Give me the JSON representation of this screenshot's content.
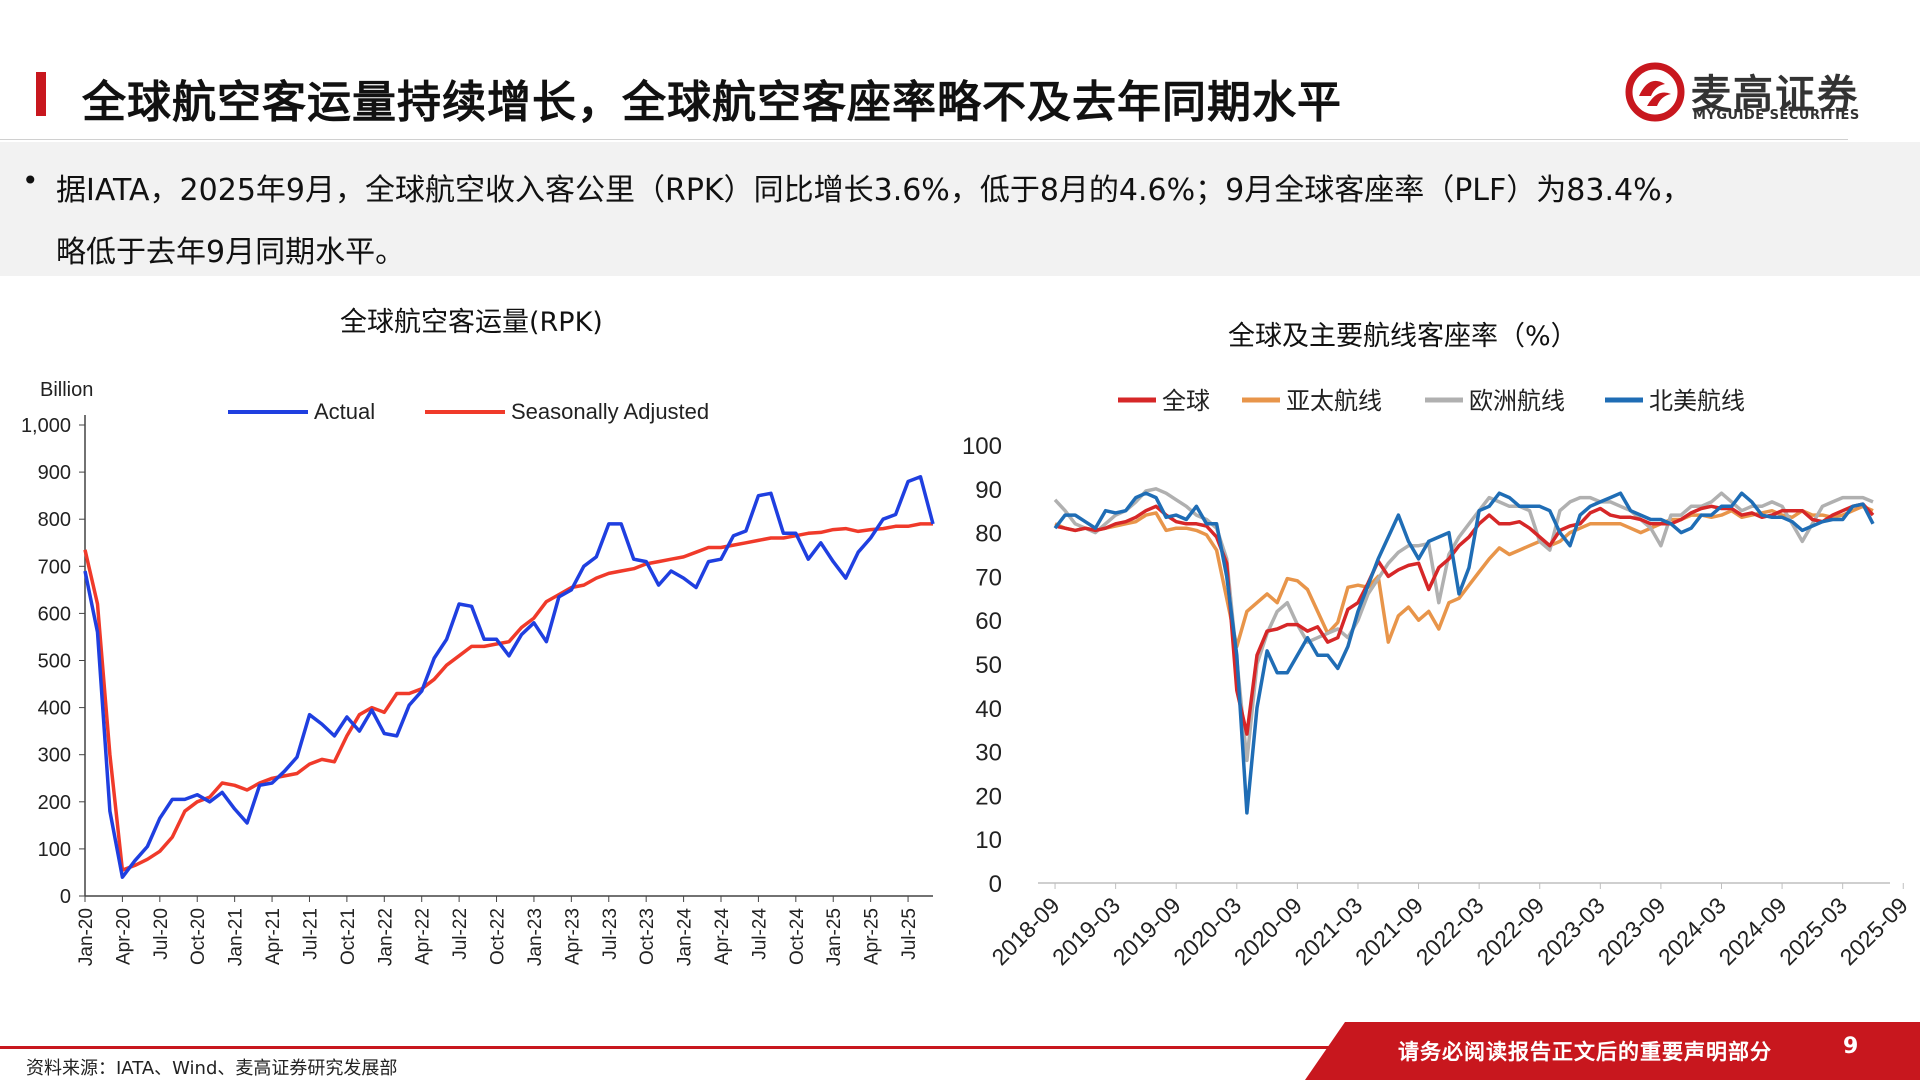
{
  "header": {
    "title": "全球航空客运量持续增长，全球航空客座率略不及去年同期水平",
    "logo_cn": "麦高证券",
    "logo_en": "MYGUIDE SECURITIES"
  },
  "summary": {
    "bullet": "•",
    "line1": "据IATA，2025年9月，全球航空收入客公里（RPK）同比增长3.6%，低于8月的4.6%；9月全球客座率（PLF）为83.4%，",
    "line2": "略低于去年9月同期水平。"
  },
  "footer": {
    "source": "资料来源：IATA、Wind、麦高证券研究发展部",
    "disclaimer": "请务必阅读报告正文后的重要声明部分",
    "page": "9"
  },
  "colors": {
    "accent": "#c8171e"
  },
  "chart_data": [
    {
      "type": "line",
      "title": "全球航空客运量(RPK)",
      "ylabel": "Billion",
      "ylim": [
        0,
        1000
      ],
      "yticks": [
        0,
        100,
        200,
        300,
        400,
        500,
        600,
        700,
        800,
        900,
        1000
      ],
      "ytick_labels": [
        "0",
        "100",
        "200",
        "300",
        "400",
        "500",
        "600",
        "700",
        "800",
        "900",
        "1,000"
      ],
      "xtick_labels": [
        "Jan-20",
        "Apr-20",
        "Jul-20",
        "Oct-20",
        "Jan-21",
        "Apr-21",
        "Jul-21",
        "Oct-21",
        "Jan-22",
        "Apr-22",
        "Jul-22",
        "Oct-22",
        "Jan-23",
        "Apr-23",
        "Jul-23",
        "Oct-23",
        "Jan-24",
        "Apr-24",
        "Jul-24",
        "Oct-24",
        "Jan-25",
        "Apr-25",
        "Jul-25"
      ],
      "legend_position": "top",
      "series": [
        {
          "name": "Actual",
          "color": "#1f3fe0",
          "values": [
            690,
            560,
            180,
            40,
            75,
            105,
            165,
            205,
            205,
            215,
            200,
            220,
            185,
            155,
            235,
            240,
            265,
            295,
            385,
            365,
            340,
            380,
            350,
            395,
            345,
            340,
            405,
            435,
            505,
            545,
            620,
            615,
            545,
            545,
            510,
            555,
            580,
            540,
            635,
            650,
            700,
            720,
            790,
            790,
            715,
            710,
            660,
            690,
            675,
            655,
            710,
            715,
            765,
            775,
            850,
            855,
            770,
            770,
            715,
            750,
            710,
            675,
            730,
            760,
            800,
            810,
            880,
            890,
            790
          ]
        },
        {
          "name": "Seasonally Adjusted",
          "color": "#f03a2a",
          "values": [
            735,
            620,
            300,
            55,
            65,
            78,
            95,
            125,
            180,
            200,
            210,
            240,
            235,
            225,
            240,
            250,
            255,
            260,
            280,
            290,
            285,
            340,
            385,
            400,
            390,
            430,
            430,
            440,
            460,
            490,
            510,
            530,
            530,
            535,
            540,
            570,
            590,
            625,
            640,
            655,
            660,
            675,
            685,
            690,
            695,
            705,
            710,
            715,
            720,
            730,
            740,
            740,
            745,
            750,
            755,
            760,
            760,
            765,
            770,
            772,
            778,
            780,
            774,
            778,
            780,
            785,
            785,
            790,
            790
          ]
        }
      ]
    },
    {
      "type": "line",
      "title": "全球及主要航线客座率（%）",
      "ylim": [
        0,
        100
      ],
      "yticks": [
        0,
        10,
        20,
        30,
        40,
        50,
        60,
        70,
        80,
        90,
        100
      ],
      "xtick_labels": [
        "2018-09",
        "2019-03",
        "2019-09",
        "2020-03",
        "2020-09",
        "2021-03",
        "2021-09",
        "2022-03",
        "2022-09",
        "2023-03",
        "2023-09",
        "2024-03",
        "2024-09",
        "2025-03",
        "2025-09"
      ],
      "legend_position": "top",
      "series": [
        {
          "name": "全球",
          "color": "#d62728",
          "values": [
            81.5,
            81,
            80.5,
            81,
            80.5,
            81,
            82,
            82.5,
            83.5,
            85,
            86,
            84,
            82.5,
            82,
            82,
            81.5,
            79,
            73,
            44,
            34,
            52,
            57.5,
            58,
            59,
            59,
            57.5,
            58.5,
            55,
            56,
            62.5,
            64,
            68.5,
            73.5,
            70,
            71.5,
            72.5,
            73,
            67,
            72,
            74,
            77,
            79,
            82,
            84,
            82,
            82,
            82.5,
            81,
            79,
            77,
            80.5,
            81.5,
            82,
            84.5,
            85.5,
            84,
            83.5,
            83.5,
            83,
            82,
            82,
            82,
            83,
            84.5,
            85.5,
            86,
            85.5,
            85.5,
            84,
            84.5,
            83.5,
            84,
            85,
            85,
            85,
            83,
            82.5,
            84,
            85,
            86,
            86.5,
            84
          ]
        },
        {
          "name": "亚太航线",
          "color": "#e8954a",
          "values": [
            82,
            81,
            80.5,
            81,
            80.5,
            81,
            81.5,
            82,
            82.5,
            84,
            84.5,
            80.5,
            81,
            81,
            80.5,
            79.5,
            76,
            65,
            54,
            62,
            64,
            66,
            64,
            69.5,
            69,
            67,
            62,
            57,
            59.5,
            67.5,
            68,
            67.5,
            70,
            55,
            61,
            63,
            60,
            62,
            58,
            64,
            65,
            68,
            71,
            74,
            76.5,
            75,
            76,
            77,
            78,
            77,
            78,
            80,
            81,
            82,
            82,
            82,
            82,
            81,
            80,
            81,
            82,
            83,
            83,
            84,
            84,
            83.5,
            84,
            85,
            83.5,
            84,
            84.5,
            85,
            84,
            83.5,
            85,
            84,
            84,
            83.5,
            84,
            85,
            86,
            85
          ]
        },
        {
          "name": "欧洲航线",
          "color": "#b0b0b0",
          "values": [
            87.5,
            85,
            82,
            81,
            80,
            82,
            84,
            85,
            87,
            89.5,
            90,
            89,
            87.5,
            86,
            84,
            83,
            81,
            74,
            51,
            28,
            50,
            57,
            62,
            64,
            59,
            55,
            56,
            57,
            58,
            56,
            60,
            66,
            69.5,
            73,
            75.5,
            77,
            77,
            77.5,
            64,
            75,
            79,
            82,
            85,
            88,
            87,
            86,
            86,
            85,
            78,
            76,
            85,
            87,
            88,
            88,
            87,
            87,
            86,
            85,
            83,
            81,
            77,
            84,
            84,
            86,
            86,
            87,
            89,
            87,
            85,
            86,
            86,
            87,
            86,
            82,
            78,
            82,
            86,
            87,
            88,
            88,
            88,
            87
          ]
        },
        {
          "name": "北美航线",
          "color": "#1f6db5",
          "values": [
            81,
            84,
            84,
            82.5,
            81,
            85,
            84.5,
            85,
            88,
            89,
            88,
            83.5,
            84,
            83,
            86,
            82,
            82,
            70,
            52,
            16,
            40,
            53,
            48,
            48,
            52,
            56,
            52,
            52,
            49,
            54,
            62,
            68,
            74,
            79,
            84,
            78,
            74,
            78,
            79,
            80,
            66,
            72,
            85,
            86,
            89,
            88,
            86,
            86,
            86,
            85,
            80,
            77,
            84,
            86,
            87,
            88,
            89,
            85,
            84,
            83,
            83,
            82,
            80,
            81,
            84,
            84,
            86,
            86,
            89,
            87,
            84,
            83.5,
            83.5,
            82.5,
            80.5,
            81.5,
            82.5,
            83,
            83,
            86,
            86.5,
            82
          ]
        }
      ]
    }
  ]
}
